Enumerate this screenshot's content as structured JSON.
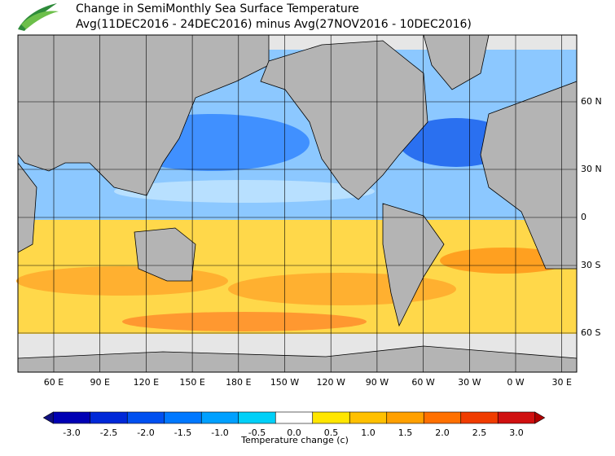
{
  "header": {
    "title": "Change in SemiMonthly Sea Surface Temperature",
    "subtitle": "Avg(11DEC2016 - 24DEC2016) minus Avg(27NOV2016 - 10DEC2016)"
  },
  "map": {
    "lat_labels": [
      "60 N",
      "30 N",
      "0",
      "30 S",
      "60 S"
    ],
    "lon_labels": [
      "60 E",
      "90 E",
      "120 E",
      "150 E",
      "180 E",
      "150 W",
      "120 W",
      "90 W",
      "60 W",
      "30 W",
      "0 W",
      "30 E"
    ]
  },
  "colorbar": {
    "label": "Temperature change  (c)",
    "ticks": [
      {
        "value": -3,
        "label": "-3.0"
      },
      {
        "value": -2.5,
        "label": "-2.5"
      },
      {
        "value": -2,
        "label": "-2.0"
      },
      {
        "value": -1.5,
        "label": "-1.5"
      },
      {
        "value": -1,
        "label": "-1.0"
      },
      {
        "value": -0.5,
        "label": "-0.5"
      },
      {
        "value": 0,
        "label": "0.0"
      },
      {
        "value": 0.5,
        "label": "0.5"
      },
      {
        "value": 1,
        "label": "1.0"
      },
      {
        "value": 1.5,
        "label": "1.5"
      },
      {
        "value": 2,
        "label": "2.0"
      },
      {
        "value": 2.5,
        "label": "2.5"
      },
      {
        "value": 3,
        "label": "3.0"
      }
    ],
    "colors": [
      "#101080",
      "#0000b4",
      "#0028d8",
      "#0050f0",
      "#0078ff",
      "#00a0ff",
      "#00d0f8",
      "#ffffff",
      "#ffe600",
      "#ffc000",
      "#ffa000",
      "#ff7000",
      "#f03c00",
      "#d01010",
      "#b00000"
    ]
  }
}
